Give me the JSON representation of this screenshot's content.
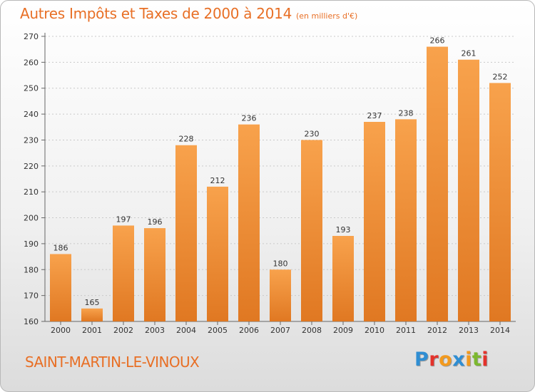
{
  "title": "Autres Impôts et Taxes de 2000 à 2014",
  "subtitle": "(en milliers d'€)",
  "commune": "SAINT-MARTIN-LE-VINOUX",
  "logo_letters": [
    "P",
    "r",
    "o",
    "x",
    "i",
    "t",
    "i"
  ],
  "colors": {
    "accent": "#e86f25",
    "bar_light": "#f8a24c",
    "bar_dark": "#e07822",
    "logo": [
      "#2f8ed3",
      "#e4322b",
      "#f39a1e",
      "#2f8ed3",
      "#f39a1e",
      "#7cb82f",
      "#e4322b"
    ]
  },
  "chart_data": {
    "type": "bar",
    "title": "Autres Impôts et Taxes de 2000 à 2014",
    "categories": [
      "2000",
      "2001",
      "2002",
      "2003",
      "2004",
      "2005",
      "2006",
      "2007",
      "2008",
      "2009",
      "2010",
      "2011",
      "2012",
      "2013",
      "2014"
    ],
    "values": [
      186,
      165,
      197,
      196,
      228,
      212,
      236,
      180,
      230,
      193,
      237,
      238,
      266,
      261,
      252
    ],
    "yticks": [
      160,
      170,
      180,
      190,
      200,
      210,
      220,
      230,
      240,
      250,
      260,
      270
    ],
    "ylim": [
      160,
      270
    ],
    "grid": true
  }
}
